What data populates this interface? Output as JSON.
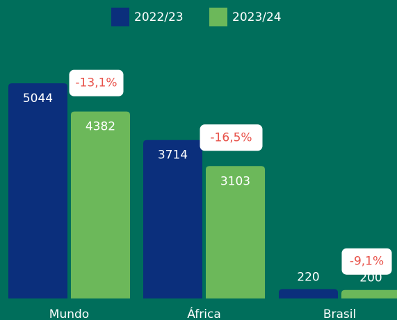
{
  "chart_data": {
    "type": "bar",
    "categories": [
      "Mundo",
      "África",
      "Brasil"
    ],
    "series": [
      {
        "name": "2022/23",
        "color": "#0b2f7c",
        "values": [
          5044,
          3714,
          220
        ]
      },
      {
        "name": "2023/24",
        "color": "#6cb85a",
        "values": [
          4382,
          3103,
          200
        ]
      }
    ],
    "annotations": [
      "-13,1%",
      "-16,5%",
      "-9,1%"
    ],
    "background": "#006e5b"
  }
}
